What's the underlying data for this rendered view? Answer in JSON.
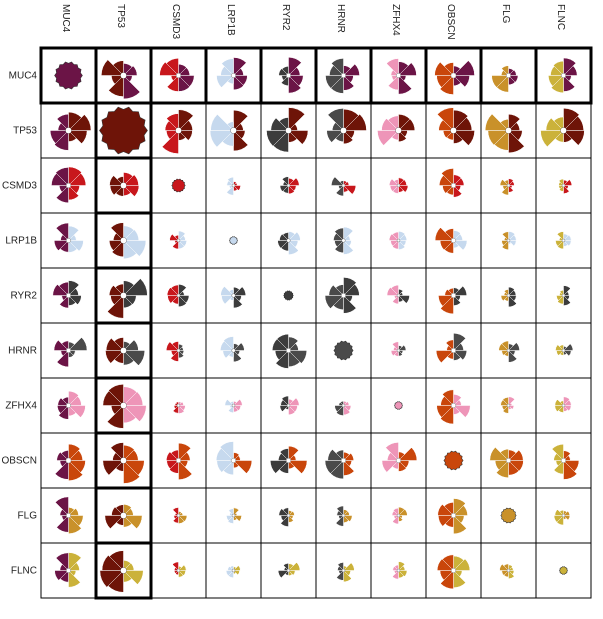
{
  "chart_data": {
    "type": "heatmap",
    "subtype": "pairwise rose-glyph matrix",
    "genes": [
      "MUC4",
      "TP53",
      "CSMD3",
      "LRP1B",
      "RYR2",
      "HRNR",
      "ZFHX4",
      "OBSCN",
      "FLG",
      "FLNC"
    ],
    "gene_colors": {
      "MUC4": "#6b1446",
      "TP53": "#6e1408",
      "CSMD3": "#c8171c",
      "LRP1B": "#c6d9ee",
      "RYR2": "#3c3c3c",
      "HRNR": "#4a4a4a",
      "ZFHX4": "#ee95b8",
      "OBSCN": "#c9460b",
      "FLG": "#c9912a",
      "FLNC": "#cbb23a"
    },
    "relative_size": [
      [
        0.58,
        1.0,
        0.8,
        0.78,
        0.78,
        0.78,
        0.78,
        0.88,
        0.78,
        0.78
      ],
      [
        1.0,
        1.0,
        1.0,
        1.0,
        1.0,
        1.0,
        1.0,
        1.0,
        1.0,
        1.0
      ],
      [
        0.8,
        1.0,
        0.28,
        0.42,
        0.48,
        0.52,
        0.4,
        0.8,
        0.4,
        0.4
      ],
      [
        0.78,
        1.0,
        0.42,
        0.16,
        0.6,
        0.6,
        0.4,
        0.8,
        0.4,
        0.4
      ],
      [
        0.78,
        1.0,
        0.48,
        0.6,
        0.2,
        0.78,
        0.48,
        0.8,
        0.48,
        0.48
      ],
      [
        0.78,
        1.0,
        0.52,
        0.6,
        0.78,
        0.4,
        0.48,
        0.8,
        0.5,
        0.5
      ],
      [
        0.78,
        1.0,
        0.4,
        0.4,
        0.48,
        0.48,
        0.12,
        0.8,
        0.4,
        0.4
      ],
      [
        0.88,
        1.0,
        0.8,
        0.8,
        0.8,
        0.8,
        0.8,
        0.4,
        0.8,
        0.8
      ],
      [
        0.78,
        1.0,
        0.4,
        0.4,
        0.48,
        0.5,
        0.4,
        0.8,
        0.32,
        0.4
      ],
      [
        0.78,
        1.0,
        0.4,
        0.4,
        0.48,
        0.5,
        0.4,
        0.8,
        0.4,
        0.12
      ]
    ],
    "highlighted": {
      "rows": [
        "MUC4"
      ],
      "columns": [
        "TP53"
      ]
    },
    "grid": true,
    "legend": "none"
  }
}
